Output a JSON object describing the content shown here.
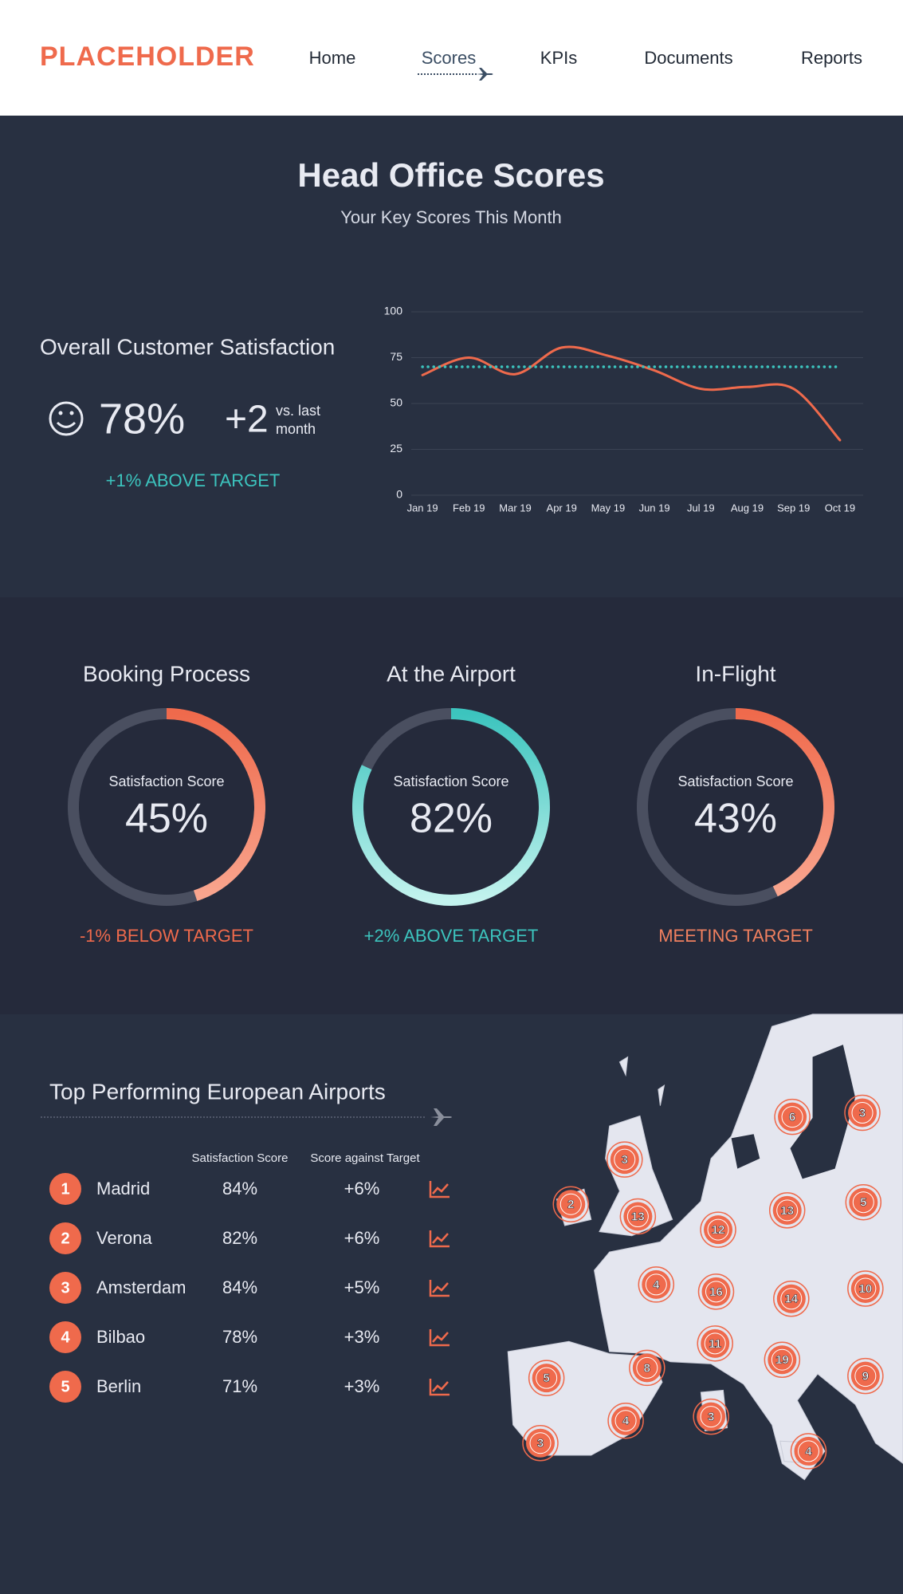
{
  "header": {
    "logo": "PLACEHOLDER",
    "nav": [
      "Home",
      "Scores",
      "KPIs",
      "Documents",
      "Reports"
    ]
  },
  "hero": {
    "title": "Head Office Scores",
    "subtitle": "Your Key Scores This Month"
  },
  "overall": {
    "title": "Overall Customer Satisfaction",
    "score": "78%",
    "change": "+2",
    "change_note": [
      "vs. last",
      "month"
    ],
    "status": "+1% ABOVE TARGET"
  },
  "chart_data": {
    "type": "line",
    "categories": [
      "Jan 19",
      "Feb 19",
      "Mar 19",
      "Apr 19",
      "May 19",
      "Jun 19",
      "Jul 19",
      "Aug 19",
      "Sep 19",
      "Oct 19"
    ],
    "series": [
      {
        "color": "#ef6a4c",
        "values": [
          65.5,
          75,
          66,
          80.5,
          76,
          68,
          58,
          59,
          58,
          30
        ]
      },
      {
        "color": "#3cc4be",
        "style": "dotted",
        "values": [
          70,
          70,
          70,
          70,
          70,
          70,
          70,
          70,
          70,
          70
        ]
      }
    ],
    "ylim": [
      0,
      100
    ],
    "yticks": [
      0,
      25,
      50,
      75,
      100
    ],
    "grid": true
  },
  "gauges": [
    {
      "title": "Booking Process",
      "caption": "Satisfaction Score",
      "value": 45,
      "value_label": "45%",
      "status": "-1% BELOW TARGET",
      "color": "#ef6a4c",
      "color_end": "#f9a58e",
      "status_color": "#ef6a4c"
    },
    {
      "title": "At the Airport",
      "caption": "Satisfaction Score",
      "value": 82,
      "value_label": "82%",
      "status": "+2% ABOVE TARGET",
      "color": "#3cc4be",
      "color_end": "#c3f3ee",
      "status_color": "#3cc4be"
    },
    {
      "title": "In-Flight",
      "caption": "Satisfaction Score",
      "value": 43,
      "value_label": "43%",
      "status": "MEETING TARGET",
      "color": "#ef6a4c",
      "color_end": "#f9a58e",
      "status_color": "#f0805f"
    }
  ],
  "airports": {
    "title": "Top Performing European Airports",
    "columns": [
      "Satisfaction Score",
      "Score against Target"
    ],
    "rows": [
      {
        "rank": "1",
        "name": "Madrid",
        "score": "84%",
        "target": "+6%"
      },
      {
        "rank": "2",
        "name": "Verona",
        "score": "82%",
        "target": "+6%"
      },
      {
        "rank": "3",
        "name": "Amsterdam",
        "score": "84%",
        "target": "+5%"
      },
      {
        "rank": "4",
        "name": "Bilbao",
        "score": "78%",
        "target": "+3%"
      },
      {
        "rank": "5",
        "name": "Berlin",
        "score": "71%",
        "target": "+3%"
      }
    ]
  },
  "map": {
    "markers": [
      "6",
      "3",
      "3",
      "2",
      "13",
      "13",
      "5",
      "12",
      "4",
      "16",
      "14",
      "10",
      "11",
      "19",
      "8",
      "5",
      "9",
      "4",
      "3",
      "3",
      "4"
    ]
  }
}
